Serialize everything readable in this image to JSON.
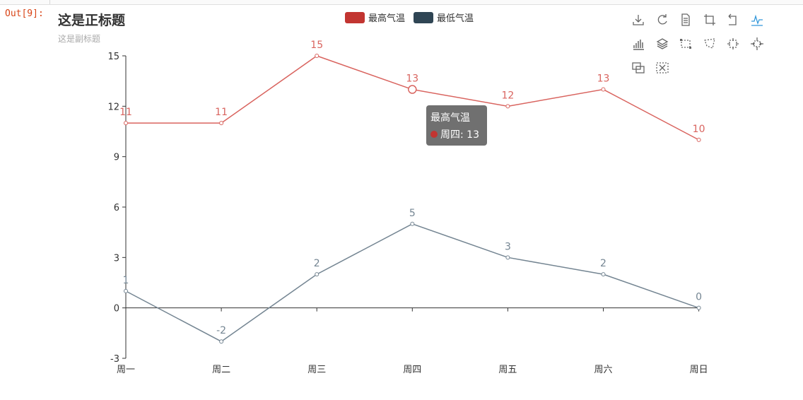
{
  "notebook": {
    "out_prompt": "Out[9]:"
  },
  "chart_data": {
    "type": "line",
    "title": "这是正标题",
    "subtitle": "这是副标题",
    "categories": [
      "周一",
      "周二",
      "周三",
      "周四",
      "周五",
      "周六",
      "周日"
    ],
    "ylim": [
      -3,
      15
    ],
    "yticks": [
      -3,
      0,
      3,
      6,
      9,
      12,
      15
    ],
    "series": [
      {
        "name": "最高气温",
        "values": [
          11,
          11,
          15,
          13,
          12,
          13,
          10
        ],
        "color": "#c23531",
        "line_color": "#d9645f"
      },
      {
        "name": "最低气温",
        "values": [
          1,
          -2,
          2,
          5,
          3,
          2,
          0
        ],
        "color": "#2f4554",
        "line_color": "#748592"
      }
    ],
    "tooltip": {
      "series": "最高气温",
      "category": "周四",
      "value": 13,
      "text": "周四: 13"
    }
  },
  "toolbox": {
    "row1": [
      "download-icon",
      "refresh-icon",
      "data-view-icon",
      "crop-icon",
      "undo-icon",
      "line-chart-icon"
    ],
    "row2": [
      "bar-chart-icon",
      "stack-icon",
      "rect-select-icon",
      "polygon-select-icon",
      "keep-select-icon",
      "clear-select-icon"
    ],
    "row3": [
      "zoom-icon",
      "zoom-reset-icon"
    ],
    "active_color": "#3398db",
    "inactive_color": "#666666"
  }
}
